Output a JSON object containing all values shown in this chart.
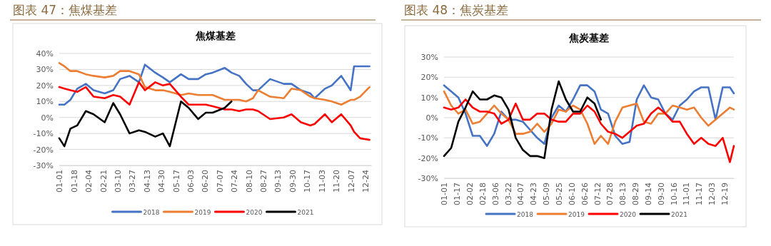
{
  "chart_data": [
    {
      "type": "line",
      "title": "图表 47：焦煤基差",
      "subtitle": "焦煤基差",
      "x": [
        "--01-01",
        "--01-07",
        "--01-14",
        "--01-22",
        "--02-01",
        "--02-10",
        "--02-23",
        "--03-05",
        "--03-13",
        "--03-24",
        "--04-04",
        "--04-11",
        "--04-23",
        "--05-02",
        "--05-10",
        "--05-23",
        "--06-01",
        "--06-12",
        "--06-21",
        "--06-29",
        "--07-13",
        "--07-21",
        "--07-30",
        "--08-07",
        "--08-15",
        "--08-21",
        "--09-04",
        "--09-20",
        "--09-29",
        "--10-10",
        "--10-21",
        "--10-26",
        "--11-07",
        "--11-15",
        "--11-26",
        "--12-07",
        "--12-11",
        "--12-18",
        "--12-29"
      ],
      "series": [
        {
          "name": "2018",
          "color": "#4472c4",
          "values": [
            8,
            8,
            11,
            18,
            21,
            17,
            15,
            17,
            24,
            26,
            22,
            33,
            28,
            25,
            22,
            27,
            24,
            24,
            27,
            28,
            31,
            28,
            26,
            21,
            17,
            17,
            24,
            21,
            21,
            17,
            15,
            12,
            18,
            20,
            26,
            17,
            32,
            32,
            32
          ]
        },
        {
          "name": "2019",
          "color": "#ed7d31",
          "values": [
            34,
            32,
            29,
            29,
            27,
            26,
            25,
            26,
            29,
            29,
            27,
            19,
            17,
            17,
            16,
            14,
            15,
            14,
            14,
            14,
            11,
            11,
            11,
            10,
            12,
            17,
            13,
            12,
            18,
            17,
            13,
            12,
            11,
            10,
            8,
            11,
            11,
            13,
            19
          ]
        },
        {
          "name": "2020",
          "color": "#ff0000",
          "values": [
            19,
            18,
            17,
            16,
            19,
            13,
            12,
            14,
            13,
            8,
            22,
            17,
            22,
            20,
            21,
            13,
            8,
            8,
            8,
            7,
            5,
            5,
            4,
            5,
            5,
            4,
            -1,
            0,
            2,
            -3,
            -5,
            -4,
            2,
            -3,
            2,
            -5,
            -9,
            -13,
            -14
          ]
        },
        {
          "name": "2021",
          "color": "#000000",
          "values": [
            -13,
            -18,
            -7,
            -5,
            4,
            2,
            -3,
            9,
            2,
            -10,
            -8,
            -9,
            -12,
            -10,
            -18,
            10,
            6,
            -1,
            3,
            3,
            6,
            10,
            null,
            null,
            null,
            null,
            null,
            null,
            null,
            null,
            null,
            null,
            null,
            null,
            null,
            null,
            null,
            null,
            null
          ]
        }
      ],
      "xlim": [
        "--01-01",
        "--12-31"
      ],
      "xticks": [
        {
          "value": "--01-01",
          "label": "01-01"
        },
        {
          "value": "--01-18",
          "label": "01-18"
        },
        {
          "value": "--02-04",
          "label": "02-04"
        },
        {
          "value": "--02-21",
          "label": "02-21"
        },
        {
          "value": "--03-10",
          "label": "03-10"
        },
        {
          "value": "--03-27",
          "label": "03-27"
        },
        {
          "value": "--04-13",
          "label": "04-13"
        },
        {
          "value": "--04-30",
          "label": "04-30"
        },
        {
          "value": "--05-17",
          "label": "05-17"
        },
        {
          "value": "--06-03",
          "label": "06-03"
        },
        {
          "value": "--06-20",
          "label": "06-20"
        },
        {
          "value": "--07-07",
          "label": "07-07"
        },
        {
          "value": "--07-24",
          "label": "07-24"
        },
        {
          "value": "--08-10",
          "label": "08-10"
        },
        {
          "value": "--08-27",
          "label": "08-27"
        },
        {
          "value": "--09-13",
          "label": "09-13"
        },
        {
          "value": "--09-30",
          "label": "09-30"
        },
        {
          "value": "--10-17",
          "label": "10-17"
        },
        {
          "value": "--11-03",
          "label": "11-03"
        },
        {
          "value": "--11-20",
          "label": "11-20"
        },
        {
          "value": "--12-07",
          "label": "12-07"
        },
        {
          "value": "--12-24",
          "label": "12-24"
        }
      ],
      "ylim": [
        -30,
        40
      ],
      "yticks": [
        {
          "value": -30,
          "label": "-30%"
        },
        {
          "value": -20,
          "label": "-20%"
        },
        {
          "value": -10,
          "label": "-10%"
        },
        {
          "value": 0,
          "label": "0%"
        },
        {
          "value": 10,
          "label": "10%"
        },
        {
          "value": 20,
          "label": "20%"
        },
        {
          "value": 30,
          "label": "30%"
        },
        {
          "value": 40,
          "label": "40%"
        }
      ],
      "grid": "y",
      "legend": "bottom"
    },
    {
      "type": "line",
      "title": "图表 48：焦炭基差",
      "subtitle": "焦炭基差",
      "x": [
        "--01-01",
        "--01-10",
        "--01-19",
        "--01-28",
        "--02-06",
        "--02-15",
        "--02-24",
        "--03-05",
        "--03-14",
        "--03-23",
        "--04-01",
        "--04-10",
        "--04-19",
        "--04-28",
        "--05-07",
        "--05-16",
        "--05-25",
        "--06-03",
        "--06-12",
        "--06-21",
        "--06-30",
        "--07-09",
        "--07-17",
        "--07-26",
        "--08-04",
        "--08-13",
        "--08-22",
        "--08-31",
        "--09-09",
        "--09-18",
        "--09-27",
        "--10-06",
        "--10-15",
        "--10-24",
        "--11-02",
        "--11-11",
        "--11-20",
        "--11-29",
        "--12-08",
        "--12-17",
        "--12-26",
        "--12-31"
      ],
      "series": [
        {
          "name": "2018",
          "color": "#4472c4",
          "values": [
            16,
            13,
            10,
            2,
            -9,
            -9,
            -14,
            -8,
            3,
            -1,
            -1,
            -2,
            -6,
            -10,
            -13,
            0,
            6,
            3,
            9,
            16,
            16,
            13,
            4,
            2,
            -9,
            -13,
            -12,
            9,
            16,
            10,
            9,
            2,
            -1,
            6,
            9,
            13,
            15,
            15,
            -1,
            15,
            15,
            12
          ]
        },
        {
          "name": "2019",
          "color": "#ed7d31",
          "values": [
            13,
            6,
            2,
            4,
            -3,
            -2,
            2,
            6,
            2,
            -1,
            -8,
            -8,
            -7,
            -3,
            -7,
            -3,
            4,
            3,
            6,
            4,
            -3,
            -13,
            -9,
            -13,
            -2,
            5,
            6,
            7,
            -2,
            -3,
            2,
            2,
            6,
            5,
            4,
            5,
            0,
            -4,
            -1,
            2,
            5,
            4
          ]
        },
        {
          "name": "2020",
          "color": "#ff0000",
          "values": [
            5,
            4,
            5,
            9,
            5,
            3,
            3,
            2,
            -3,
            -1,
            7,
            -1,
            -1,
            2,
            2,
            -1,
            -2,
            -2,
            2,
            2,
            6,
            3,
            -3,
            -7,
            -8,
            -10,
            -7,
            -4,
            -3,
            2,
            5,
            2,
            -2,
            -2,
            -8,
            -13,
            -10,
            -13,
            -14,
            -10,
            -22,
            -14
          ]
        },
        {
          "name": "2021",
          "color": "#000000",
          "values": [
            -19,
            -15,
            -2,
            5,
            13,
            9,
            9,
            11,
            10,
            4,
            -10,
            -16,
            -19,
            -19,
            -20,
            4,
            18,
            9,
            3,
            3,
            10,
            7,
            -1,
            null,
            null,
            null,
            null,
            null,
            null,
            null,
            null,
            null,
            null,
            null,
            null,
            null,
            null,
            null,
            null,
            null,
            null,
            null
          ]
        }
      ],
      "xlim": [
        "--01-01",
        "--12-31"
      ],
      "xticks": [
        {
          "value": "--01-01",
          "label": "01-01"
        },
        {
          "value": "--01-17",
          "label": "01-17"
        },
        {
          "value": "--02-02",
          "label": "02-02"
        },
        {
          "value": "--02-18",
          "label": "02-18"
        },
        {
          "value": "--03-06",
          "label": "03-06"
        },
        {
          "value": "--03-22",
          "label": "03-22"
        },
        {
          "value": "--04-07",
          "label": "04-07"
        },
        {
          "value": "--04-23",
          "label": "04-23"
        },
        {
          "value": "--05-09",
          "label": "05-09"
        },
        {
          "value": "--05-25",
          "label": "05-25"
        },
        {
          "value": "--06-10",
          "label": "06-10"
        },
        {
          "value": "--06-26",
          "label": "06-26"
        },
        {
          "value": "--07-12",
          "label": "07-12"
        },
        {
          "value": "--07-28",
          "label": "07-28"
        },
        {
          "value": "--08-13",
          "label": "08-13"
        },
        {
          "value": "--08-29",
          "label": "08-29"
        },
        {
          "value": "--09-14",
          "label": "09-14"
        },
        {
          "value": "--09-30",
          "label": "09-30"
        },
        {
          "value": "--10-16",
          "label": "10-16"
        },
        {
          "value": "--11-01",
          "label": "11-01"
        },
        {
          "value": "--11-17",
          "label": "11-17"
        },
        {
          "value": "--12-03",
          "label": "12-03"
        },
        {
          "value": "--12-19",
          "label": "12-19"
        }
      ],
      "ylim": [
        -30,
        30
      ],
      "yticks": [
        {
          "value": -30,
          "label": "-30%"
        },
        {
          "value": -20,
          "label": "-20%"
        },
        {
          "value": -10,
          "label": "-10%"
        },
        {
          "value": 0,
          "label": "0%"
        },
        {
          "value": 10,
          "label": "10%"
        },
        {
          "value": 20,
          "label": "20%"
        },
        {
          "value": 30,
          "label": "30%"
        }
      ],
      "grid": "y",
      "legend": "bottom"
    }
  ]
}
